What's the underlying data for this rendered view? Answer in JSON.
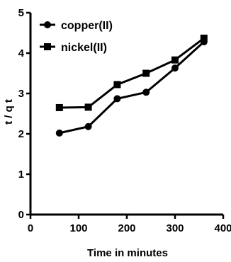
{
  "chart_data": {
    "type": "line",
    "xlabel": "Time in minutes",
    "ylabel": "t / q t",
    "xlim": [
      0,
      400
    ],
    "ylim": [
      0,
      5
    ],
    "xticks": [
      0,
      100,
      200,
      300,
      400
    ],
    "yticks": [
      0,
      1,
      2,
      3,
      4,
      5
    ],
    "grid": false,
    "legend": "top-left",
    "series": [
      {
        "name": "copper(II)",
        "marker": "circle",
        "x": [
          60,
          120,
          180,
          240,
          300,
          360
        ],
        "values": [
          2.02,
          2.18,
          2.87,
          3.03,
          3.63,
          4.28
        ]
      },
      {
        "name": "nickel(II)",
        "marker": "square",
        "x": [
          60,
          120,
          180,
          240,
          300,
          360
        ],
        "values": [
          2.65,
          2.66,
          3.22,
          3.5,
          3.83,
          4.37
        ]
      }
    ]
  }
}
